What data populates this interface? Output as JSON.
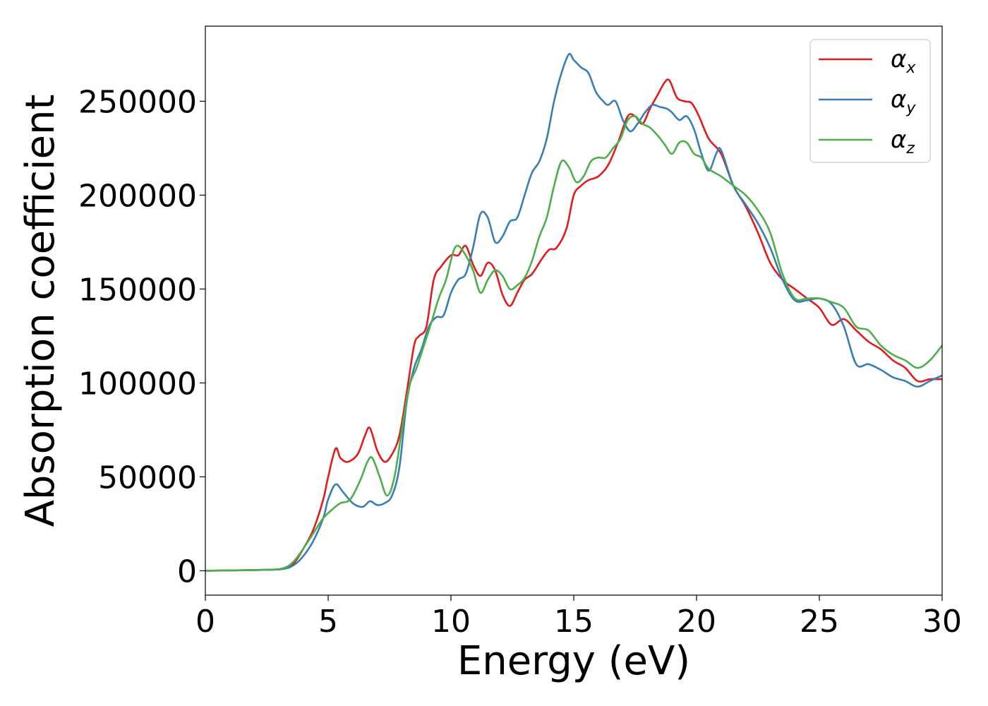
{
  "chart_data": {
    "type": "line",
    "title": "",
    "xlabel": "Energy (eV)",
    "ylabel": "Absorption coefficient",
    "xlim": [
      0,
      30
    ],
    "ylim": [
      -13000,
      290000
    ],
    "grid": false,
    "legend_position": "top-right",
    "x_ticks": [
      "0",
      "5",
      "10",
      "15",
      "20",
      "25",
      "30"
    ],
    "x_tick_values": [
      0,
      5,
      10,
      15,
      20,
      25,
      30
    ],
    "y_ticks": [
      "0",
      "50000",
      "100000",
      "150000",
      "200000",
      "250000"
    ],
    "y_tick_values": [
      0,
      50000,
      100000,
      150000,
      200000,
      250000
    ],
    "series": [
      {
        "name": "α",
        "subscript": "x",
        "color": "#e41a1c",
        "x": [
          0,
          2.5,
          3.2,
          3.6,
          4.0,
          4.4,
          4.8,
          5.0,
          5.3,
          5.5,
          5.8,
          6.2,
          6.5,
          6.7,
          7.0,
          7.3,
          7.6,
          7.9,
          8.2,
          8.5,
          8.7,
          9.0,
          9.3,
          9.6,
          10.0,
          10.3,
          10.6,
          10.9,
          11.2,
          11.5,
          11.8,
          12.1,
          12.4,
          12.7,
          13.0,
          13.3,
          13.7,
          14.0,
          14.3,
          14.7,
          15.0,
          15.3,
          15.6,
          16.0,
          16.4,
          16.8,
          17.2,
          17.5,
          17.8,
          18.1,
          18.4,
          18.7,
          18.9,
          19.2,
          19.5,
          19.8,
          20.1,
          20.5,
          21.0,
          21.5,
          22.0,
          22.5,
          23.0,
          23.5,
          24.0,
          24.5,
          25.0,
          25.5,
          26.0,
          26.5,
          27.0,
          27.5,
          28.0,
          28.5,
          29.0,
          29.5,
          30.0
        ],
        "y": [
          0,
          500,
          1200,
          4000,
          12000,
          22000,
          38000,
          50000,
          65000,
          60000,
          58000,
          62000,
          72000,
          76000,
          64000,
          58000,
          62000,
          72000,
          95000,
          120000,
          125000,
          130000,
          155000,
          162000,
          168000,
          168000,
          173000,
          163000,
          157000,
          164000,
          160000,
          147000,
          141000,
          148000,
          155000,
          158000,
          166000,
          171000,
          172000,
          182000,
          200000,
          205000,
          208000,
          210000,
          216000,
          228000,
          242000,
          242000,
          238000,
          246000,
          253000,
          260000,
          261000,
          252000,
          250000,
          249000,
          242000,
          230000,
          222000,
          205000,
          194000,
          180000,
          164000,
          155000,
          150000,
          145000,
          140000,
          131000,
          134000,
          128000,
          122000,
          118000,
          112000,
          108000,
          101000,
          102000,
          102000
        ]
      },
      {
        "name": "α",
        "subscript": "y",
        "color": "#377eb8",
        "x": [
          0,
          2.5,
          3.2,
          3.6,
          4.0,
          4.4,
          4.8,
          5.0,
          5.3,
          5.6,
          6.0,
          6.4,
          6.7,
          7.0,
          7.3,
          7.6,
          7.9,
          8.2,
          8.5,
          8.8,
          9.1,
          9.4,
          9.7,
          10.0,
          10.3,
          10.6,
          10.9,
          11.2,
          11.5,
          11.8,
          12.1,
          12.4,
          12.7,
          13.0,
          13.3,
          13.6,
          13.9,
          14.2,
          14.5,
          14.8,
          15.0,
          15.3,
          15.6,
          15.9,
          16.2,
          16.4,
          16.7,
          17.0,
          17.3,
          17.6,
          17.9,
          18.2,
          18.5,
          18.8,
          19.0,
          19.3,
          19.6,
          19.9,
          20.2,
          20.5,
          20.8,
          21.0,
          21.5,
          22.0,
          22.5,
          23.0,
          23.5,
          24.0,
          24.5,
          25.0,
          25.5,
          26.0,
          26.5,
          27.0,
          27.5,
          28.0,
          28.5,
          29.0,
          29.5,
          30.0
        ],
        "y": [
          0,
          500,
          1000,
          3000,
          8000,
          16000,
          28000,
          38000,
          46000,
          42000,
          36000,
          34000,
          37000,
          35000,
          36000,
          40000,
          55000,
          90000,
          108000,
          118000,
          130000,
          135000,
          136000,
          148000,
          155000,
          158000,
          172000,
          190000,
          188000,
          175000,
          178000,
          186000,
          188000,
          200000,
          212000,
          218000,
          230000,
          250000,
          265000,
          275000,
          272000,
          268000,
          265000,
          255000,
          250000,
          248000,
          250000,
          240000,
          234000,
          238000,
          244000,
          248000,
          247000,
          246000,
          244000,
          240000,
          242000,
          235000,
          222000,
          213000,
          222000,
          224000,
          205000,
          195000,
          185000,
          172000,
          155000,
          144000,
          144000,
          145000,
          142000,
          130000,
          110000,
          110000,
          107000,
          103000,
          101000,
          98000,
          101000,
          104000
        ]
      },
      {
        "name": "α",
        "subscript": "z",
        "color": "#4daf4a",
        "x": [
          0,
          2.5,
          3.2,
          3.6,
          4.0,
          4.4,
          4.8,
          5.2,
          5.5,
          5.9,
          6.3,
          6.6,
          6.8,
          7.1,
          7.4,
          7.7,
          8.0,
          8.3,
          8.6,
          8.9,
          9.2,
          9.5,
          9.8,
          10.1,
          10.3,
          10.6,
          10.9,
          11.2,
          11.5,
          11.8,
          12.1,
          12.4,
          12.7,
          13.0,
          13.3,
          13.6,
          13.9,
          14.2,
          14.5,
          14.8,
          15.1,
          15.4,
          15.7,
          16.0,
          16.3,
          16.6,
          16.9,
          17.2,
          17.5,
          17.8,
          18.1,
          18.4,
          18.7,
          19.0,
          19.3,
          19.6,
          19.9,
          20.2,
          20.5,
          21.0,
          21.5,
          22.0,
          22.5,
          23.0,
          23.5,
          24.0,
          24.5,
          25.0,
          25.5,
          26.0,
          26.5,
          27.0,
          27.5,
          28.0,
          28.5,
          29.0,
          29.5,
          30.0
        ],
        "y": [
          0,
          500,
          1500,
          5000,
          12000,
          20000,
          28000,
          33000,
          36000,
          38000,
          48000,
          58000,
          60000,
          50000,
          40000,
          50000,
          75000,
          98000,
          108000,
          120000,
          132000,
          145000,
          155000,
          170000,
          173000,
          168000,
          160000,
          148000,
          155000,
          160000,
          157000,
          150000,
          152000,
          156000,
          165000,
          178000,
          188000,
          205000,
          218000,
          215000,
          207000,
          210000,
          218000,
          220000,
          220000,
          225000,
          230000,
          240000,
          242000,
          238000,
          236000,
          232000,
          227000,
          222000,
          228000,
          228000,
          222000,
          220000,
          214000,
          210000,
          205000,
          200000,
          192000,
          180000,
          158000,
          145000,
          145000,
          145000,
          143000,
          140000,
          130000,
          128000,
          120000,
          115000,
          112000,
          108000,
          112000,
          120000
        ]
      }
    ]
  }
}
